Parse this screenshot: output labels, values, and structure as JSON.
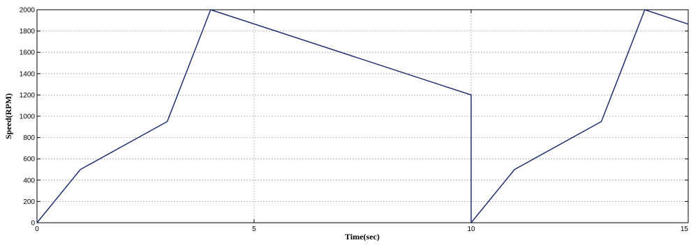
{
  "chart_data": {
    "type": "line",
    "xlabel": "Time(sec)",
    "ylabel": "Speed(RPM)",
    "xlim": [
      0,
      15
    ],
    "ylim": [
      0,
      2000
    ],
    "xticks": [
      0,
      5,
      10,
      15
    ],
    "yticks": [
      0,
      200,
      400,
      600,
      800,
      1000,
      1200,
      1400,
      1600,
      1800,
      2000
    ],
    "grid": true,
    "colors": {
      "series": "#1f2f6e"
    },
    "series": [
      {
        "x": [
          0,
          1,
          3,
          4,
          10,
          10,
          11,
          13,
          14,
          15
        ],
        "y": [
          0,
          500,
          950,
          2000,
          1200,
          0,
          500,
          950,
          2000,
          1865
        ]
      }
    ]
  }
}
